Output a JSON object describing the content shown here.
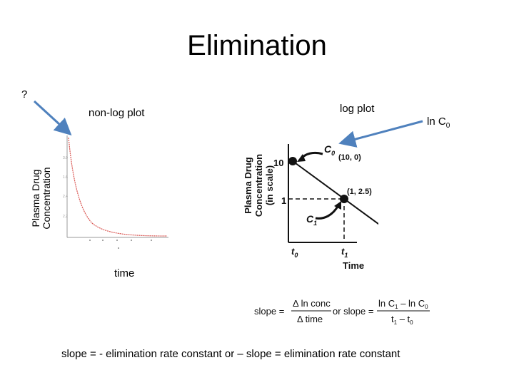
{
  "slide": {
    "title": "Elimination",
    "question_mark": "?",
    "nonlog_label": "non-log plot",
    "log_label": "log plot",
    "ln_c0_label": "ln C",
    "ln_c0_sub": "0",
    "ylabel_line1": "Plasma Drug",
    "ylabel_line2": "Concentration",
    "time_label": "time",
    "bottom_text": "slope = - elimination rate constant or – slope = elimination rate constant"
  },
  "log_plot": {
    "ylabel_line1": "Plasma Drug",
    "ylabel_line2": "Concentration",
    "ylabel_line3": "(in scale)",
    "xlabel": "Time",
    "y_tick_top": "10",
    "y_tick_mid": "1",
    "x_tick_t0": "t",
    "x_tick_t0_sub": "0",
    "x_tick_t1": "t",
    "x_tick_t1_sub": "1",
    "c0_label": "C",
    "c0_sub": "0",
    "c1_label": "C",
    "c1_sub": "1",
    "point1_label": "(10, 0)",
    "point2_label": "(1, 2.5)"
  },
  "formula": {
    "slope_word": "slope =",
    "num1": "Δ ln conc",
    "den1": "Δ time",
    "or_text": "or slope =",
    "num2_a": "ln C",
    "num2_a_sub": "1",
    "num2_b": " – ln C",
    "num2_b_sub": "0",
    "den2_a": "t",
    "den2_a_sub": "1",
    "den2_b": " – t",
    "den2_b_sub": "0"
  },
  "colors": {
    "arrow": "#4f81bd",
    "curve": "#d9534f"
  }
}
